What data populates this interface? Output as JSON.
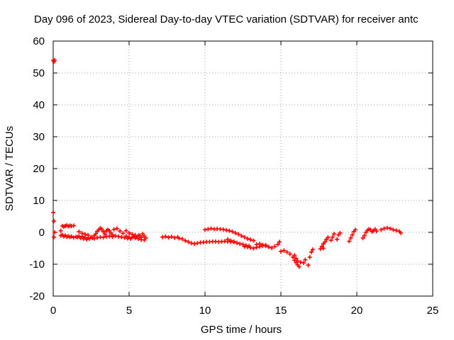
{
  "chart_data": {
    "type": "scatter",
    "title": "Day 096 of 2023, Sidereal Day-to-day VTEC variation (SDTVAR) for receiver antc",
    "xlabel": "GPS time / hours",
    "ylabel": "SDTVAR / TECUs",
    "xlim": [
      0,
      25
    ],
    "ylim": [
      -20,
      60
    ],
    "xticks": [
      "0",
      "5",
      "10",
      "15",
      "20",
      "25"
    ],
    "yticks": [
      "-20",
      "-10",
      "0",
      "10",
      "20",
      "30",
      "40",
      "50",
      "60"
    ],
    "grid": true,
    "marker": "plus",
    "color": "#ff0000",
    "series": [
      {
        "name": "SDTVAR",
        "points": [
          [
            0.0,
            54
          ],
          [
            0.05,
            53.5
          ],
          [
            0.1,
            54
          ],
          [
            0.0,
            6.2
          ],
          [
            0.05,
            3.5
          ],
          [
            0.1,
            0.0
          ],
          [
            0.05,
            -1.5
          ],
          [
            0.5,
            0.5
          ],
          [
            0.6,
            2.0
          ],
          [
            0.7,
            1.8
          ],
          [
            0.8,
            2.0
          ],
          [
            0.9,
            2.2
          ],
          [
            1.0,
            1.9
          ],
          [
            1.1,
            2.1
          ],
          [
            1.2,
            2.0
          ],
          [
            1.35,
            2.1
          ],
          [
            0.5,
            -1.0
          ],
          [
            0.6,
            -0.8
          ],
          [
            0.7,
            -1.3
          ],
          [
            0.8,
            -1.0
          ],
          [
            0.9,
            -1.4
          ],
          [
            1.0,
            -1.2
          ],
          [
            1.1,
            -1.5
          ],
          [
            1.2,
            -1.3
          ],
          [
            1.35,
            -1.6
          ],
          [
            1.5,
            -1.4
          ],
          [
            1.6,
            -1.5
          ],
          [
            1.7,
            -1.2
          ],
          [
            1.8,
            -1.8
          ],
          [
            1.9,
            -1.3
          ],
          [
            2.0,
            -2.0
          ],
          [
            2.1,
            -1.6
          ],
          [
            2.2,
            -2.2
          ],
          [
            2.3,
            -1.8
          ],
          [
            2.4,
            -2.0
          ],
          [
            2.5,
            -1.5
          ],
          [
            1.7,
            0.2
          ],
          [
            1.9,
            -0.3
          ],
          [
            2.1,
            -0.6
          ],
          [
            2.3,
            -0.9
          ],
          [
            2.6,
            -1.8
          ],
          [
            2.7,
            -1.0
          ],
          [
            2.8,
            -0.5
          ],
          [
            2.9,
            0.3
          ],
          [
            3.0,
            0.8
          ],
          [
            3.1,
            1.3
          ],
          [
            3.2,
            1.0
          ],
          [
            3.3,
            0.2
          ],
          [
            3.4,
            -0.5
          ],
          [
            3.5,
            0.5
          ],
          [
            2.7,
            -1.9
          ],
          [
            2.9,
            -1.7
          ],
          [
            3.1,
            -1.5
          ],
          [
            3.3,
            -1.6
          ],
          [
            3.5,
            -1.3
          ],
          [
            3.7,
            -1.2
          ],
          [
            3.9,
            -1.4
          ],
          [
            4.1,
            -1.1
          ],
          [
            4.3,
            -1.3
          ],
          [
            4.5,
            -1.5
          ],
          [
            3.6,
            0.8
          ],
          [
            3.7,
            0.5
          ],
          [
            3.8,
            -0.2
          ],
          [
            3.9,
            -0.8
          ],
          [
            4.0,
            0.9
          ],
          [
            4.2,
            1.2
          ],
          [
            4.4,
            0.4
          ],
          [
            4.6,
            -0.3
          ],
          [
            4.7,
            -1.7
          ],
          [
            4.8,
            -1.2
          ],
          [
            4.9,
            -1.9
          ],
          [
            5.0,
            -1.5
          ],
          [
            5.1,
            -2.0
          ],
          [
            5.2,
            -1.6
          ],
          [
            5.3,
            -1.3
          ],
          [
            5.4,
            -1.8
          ],
          [
            5.5,
            -1.5
          ],
          [
            4.8,
            0.5
          ],
          [
            5.0,
            -0.2
          ],
          [
            5.2,
            -0.6
          ],
          [
            5.4,
            -0.9
          ],
          [
            5.6,
            -1.0
          ],
          [
            5.6,
            -2.0
          ],
          [
            5.7,
            -1.0
          ],
          [
            5.8,
            -1.6
          ],
          [
            5.9,
            -0.5
          ],
          [
            6.0,
            -1.2
          ],
          [
            6.1,
            -1.8
          ],
          [
            5.8,
            -2.3
          ],
          [
            6.0,
            -2.4
          ],
          [
            7.2,
            -1.5
          ],
          [
            7.4,
            -1.3
          ],
          [
            7.6,
            -1.6
          ],
          [
            7.8,
            -1.4
          ],
          [
            8.0,
            -1.7
          ],
          [
            8.2,
            -1.5
          ],
          [
            8.3,
            -1.9
          ],
          [
            8.5,
            -2.1
          ],
          [
            8.7,
            -2.6
          ],
          [
            8.9,
            -3.0
          ],
          [
            9.1,
            -3.4
          ],
          [
            9.3,
            -3.6
          ],
          [
            9.5,
            -3.4
          ],
          [
            9.7,
            -3.2
          ],
          [
            9.9,
            -3.1
          ],
          [
            10.1,
            -3.0
          ],
          [
            10.3,
            -3.0
          ],
          [
            10.5,
            -2.9
          ],
          [
            10.7,
            -2.9
          ],
          [
            10.9,
            -3.0
          ],
          [
            11.1,
            -2.9
          ],
          [
            11.3,
            -2.8
          ],
          [
            11.5,
            -2.9
          ],
          [
            11.7,
            -3.0
          ],
          [
            11.9,
            -3.1
          ],
          [
            10.0,
            0.8
          ],
          [
            10.2,
            1.0
          ],
          [
            10.4,
            1.2
          ],
          [
            10.6,
            1.0
          ],
          [
            10.8,
            1.1
          ],
          [
            11.0,
            1.0
          ],
          [
            11.2,
            0.9
          ],
          [
            11.4,
            0.7
          ],
          [
            11.6,
            0.5
          ],
          [
            11.8,
            0.2
          ],
          [
            12.0,
            -0.2
          ],
          [
            12.2,
            -0.6
          ],
          [
            12.4,
            -1.1
          ],
          [
            12.6,
            -1.5
          ],
          [
            12.8,
            -2.0
          ],
          [
            13.0,
            -2.3
          ],
          [
            13.2,
            -2.6
          ],
          [
            11.5,
            -2.2
          ],
          [
            11.7,
            -2.6
          ],
          [
            11.9,
            -2.9
          ],
          [
            12.1,
            -3.3
          ],
          [
            12.3,
            -3.6
          ],
          [
            12.5,
            -3.8
          ],
          [
            12.7,
            -4.1
          ],
          [
            12.9,
            -4.3
          ],
          [
            12.6,
            -4.5
          ],
          [
            12.8,
            -4.6
          ],
          [
            13.0,
            -4.8
          ],
          [
            13.2,
            -5.0
          ],
          [
            13.4,
            -4.7
          ],
          [
            13.6,
            -4.5
          ],
          [
            13.8,
            -4.2
          ],
          [
            14.0,
            -4.0
          ],
          [
            13.4,
            -3.8
          ],
          [
            13.6,
            -3.6
          ],
          [
            13.8,
            -3.9
          ],
          [
            14.0,
            -4.3
          ],
          [
            14.2,
            -4.6
          ],
          [
            14.4,
            -4.9
          ],
          [
            14.6,
            -4.4
          ],
          [
            14.8,
            -3.8
          ],
          [
            14.9,
            -3.0
          ],
          [
            15.0,
            -6.0
          ],
          [
            15.2,
            -5.7
          ],
          [
            15.4,
            -6.2
          ],
          [
            15.6,
            -6.8
          ],
          [
            15.8,
            -7.8
          ],
          [
            15.9,
            -8.8
          ],
          [
            16.0,
            -9.5
          ],
          [
            16.1,
            -10.2
          ],
          [
            16.2,
            -10.8
          ],
          [
            15.9,
            -7.2
          ],
          [
            16.0,
            -8.2
          ],
          [
            16.1,
            -9.0
          ],
          [
            16.3,
            -9.4
          ],
          [
            16.5,
            -9.6
          ],
          [
            16.6,
            -8.6
          ],
          [
            16.8,
            -10.3
          ],
          [
            16.9,
            -7.8
          ],
          [
            17.0,
            -6.2
          ],
          [
            17.1,
            -5.4
          ],
          [
            17.6,
            -5.2
          ],
          [
            17.7,
            -4.4
          ],
          [
            17.8,
            -3.6
          ],
          [
            17.9,
            -3.0
          ],
          [
            18.0,
            -2.2
          ],
          [
            18.1,
            -1.6
          ],
          [
            17.8,
            -5.0
          ],
          [
            18.3,
            -2.5
          ],
          [
            18.4,
            -1.5
          ],
          [
            18.5,
            -0.5
          ],
          [
            18.7,
            -2.2
          ],
          [
            18.8,
            -0.8
          ],
          [
            18.9,
            -0.2
          ],
          [
            19.5,
            -2.8
          ],
          [
            19.6,
            -1.8
          ],
          [
            19.7,
            -0.8
          ],
          [
            19.8,
            0.2
          ],
          [
            19.9,
            0.8
          ],
          [
            20.4,
            -1.8
          ],
          [
            20.5,
            -1.0
          ],
          [
            20.6,
            0.0
          ],
          [
            20.7,
            0.6
          ],
          [
            20.8,
            1.0
          ],
          [
            20.9,
            0.8
          ],
          [
            21.0,
            0.2
          ],
          [
            21.1,
            0.5
          ],
          [
            21.2,
            1.0
          ],
          [
            21.3,
            0.4
          ],
          [
            21.6,
            0.8
          ],
          [
            21.8,
            1.2
          ],
          [
            22.0,
            1.4
          ],
          [
            22.2,
            1.2
          ],
          [
            22.4,
            0.8
          ],
          [
            22.6,
            0.6
          ],
          [
            22.8,
            0.3
          ],
          [
            22.9,
            -0.2
          ]
        ]
      }
    ]
  }
}
